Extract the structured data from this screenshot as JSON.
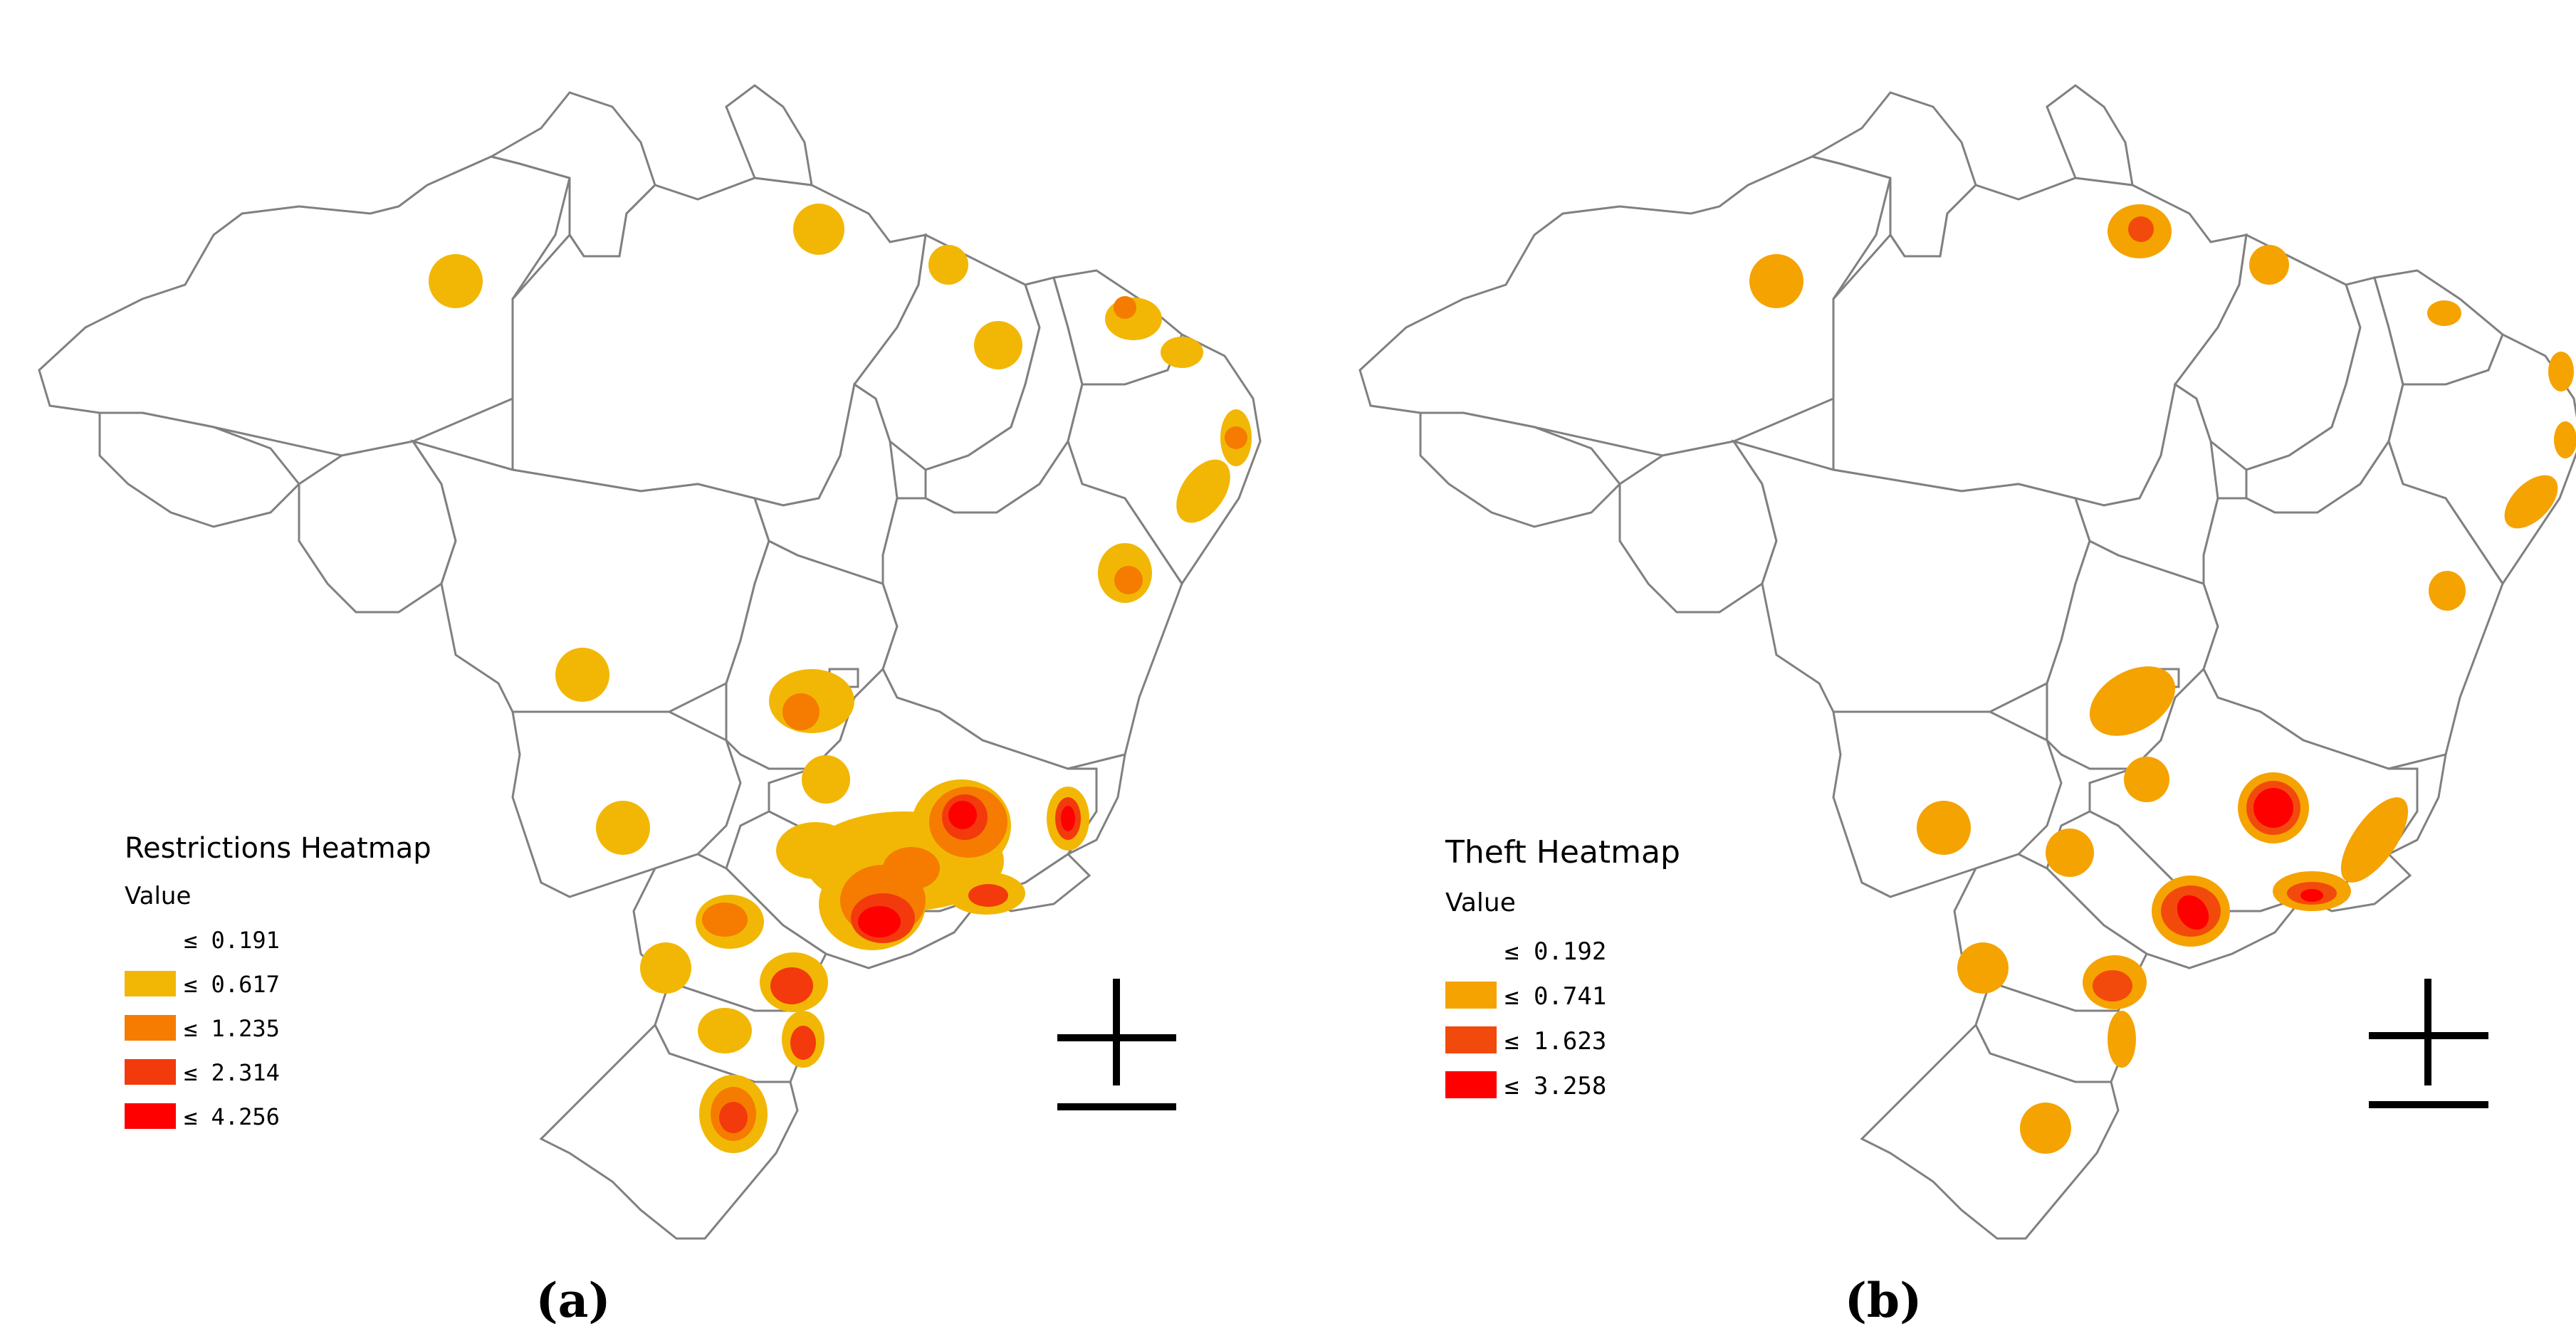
{
  "panels": [
    {
      "id": "a",
      "caption": "(a)",
      "legend": {
        "title": "Restrictions Heatmap",
        "subtitle": "Value",
        "classes": [
          {
            "label": "≤ 0.191",
            "color": "#ffffff"
          },
          {
            "label": "≤ 0.617",
            "color": "#f2b705"
          },
          {
            "label": "≤ 1.235",
            "color": "#f57c00"
          },
          {
            "label": "≤ 2.314",
            "color": "#f23a0c"
          },
          {
            "label": "≤ 4.256",
            "color": "#ff0000"
          }
        ]
      }
    },
    {
      "id": "b",
      "caption": "(b)",
      "legend": {
        "title": "Theft Heatmap",
        "subtitle": "Value",
        "classes": [
          {
            "label": "≤ 0.192",
            "color": "#ffffff"
          },
          {
            "label": "≤ 0.741",
            "color": "#f5a300"
          },
          {
            "label": "≤ 1.623",
            "color": "#f24a0c"
          },
          {
            "label": "≤ 3.258",
            "color": "#ff0000"
          }
        ]
      }
    }
  ],
  "colors": {
    "border": "#808080",
    "north_arrow": "#000000"
  },
  "icons": [
    "north-arrow-icon"
  ]
}
